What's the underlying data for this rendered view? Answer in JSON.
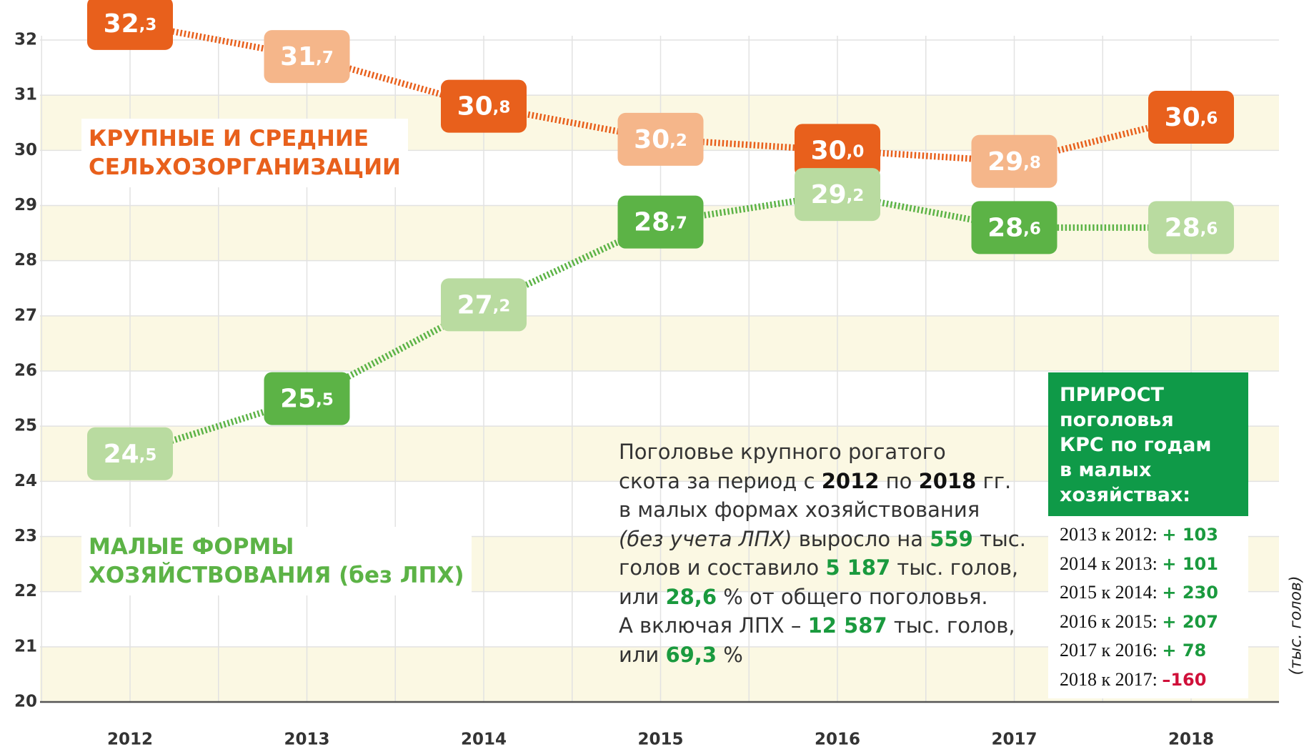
{
  "chart_data": {
    "type": "line",
    "categories": [
      "2012",
      "2013",
      "2014",
      "2015",
      "2016",
      "2017",
      "2018"
    ],
    "series": [
      {
        "name": [
          "КРУПНЫЕ И СРЕДНИЕ",
          "СЕЛЬХОЗОРГАНИЗАЦИИ"
        ],
        "color": "#e8601c",
        "box_colors": [
          "#e8601c",
          "#f5b68a"
        ],
        "values": [
          32.3,
          31.7,
          30.8,
          30.2,
          30.0,
          29.8,
          30.6
        ],
        "value_labels": [
          "32,3",
          "31,7",
          "30,8",
          "30,2",
          "30,0",
          "29,8",
          "30,6"
        ]
      },
      {
        "name": [
          "МАЛЫЕ ФОРМЫ",
          "ХОЗЯЙСТВОВАНИЯ (без ЛПХ)"
        ],
        "color": "#5cb346",
        "box_colors": [
          "#b9dba0",
          "#5cb346"
        ],
        "values": [
          24.5,
          25.5,
          27.2,
          28.7,
          29.2,
          28.6,
          28.6
        ],
        "value_labels": [
          "24,5",
          "25,5",
          "27,2",
          "28,7",
          "29,2",
          "28,6",
          "28,6"
        ]
      }
    ],
    "ylim": [
      20,
      32
    ],
    "yticks": [
      20,
      21,
      22,
      23,
      24,
      25,
      26,
      27,
      28,
      29,
      30,
      31,
      32
    ],
    "y_unit": "(тыс. голов)",
    "note": [
      [
        "Поголовье крупного рогатого"
      ],
      [
        "скота за период с ",
        "2012",
        " по ",
        "2018",
        " гг."
      ],
      [
        "в малых формах хозяйствования"
      ],
      [
        "(без учета ЛПХ)",
        " выросло на ",
        "559",
        " тыс."
      ],
      [
        "голов и составило ",
        "5 187",
        " тыс. голов,"
      ],
      [
        "или ",
        "28,6",
        " % от общего поголовья."
      ],
      [
        "А включая ЛПХ – ",
        "12 587",
        " тыс. голов,"
      ],
      [
        "или ",
        "69,3",
        " %"
      ]
    ],
    "growth": {
      "title": [
        "ПРИРОСТ",
        "поголовья",
        "КРС по годам",
        "в малых",
        "хозяйствах:"
      ],
      "rows": [
        [
          "2013 к 2012:",
          "+ 103"
        ],
        [
          "2014 к 2013:",
          "+ 101"
        ],
        [
          "2015 к 2014:",
          "+ 230"
        ],
        [
          "2016 к 2015:",
          "+ 207"
        ],
        [
          "2017 к 2016:",
          "+ 78"
        ],
        [
          "2018 к 2017:",
          "–160"
        ]
      ]
    }
  }
}
